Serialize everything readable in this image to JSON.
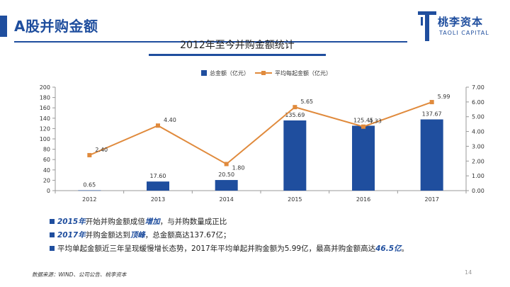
{
  "header": {
    "title": "A股并购金额"
  },
  "logo": {
    "name": "桃李资本",
    "sub": "TAOLI CAPITAL"
  },
  "chart_data": {
    "type": "bar",
    "title": "2012年至今并购金额统计",
    "categories": [
      "2012",
      "2013",
      "2014",
      "2015",
      "2016",
      "2017"
    ],
    "series": [
      {
        "name": "总金额（亿元）",
        "type": "bar",
        "axis": "left",
        "color": "#1f4e9e",
        "values": [
          0.65,
          17.6,
          20.5,
          135.69,
          125.45,
          137.67
        ],
        "labels": [
          "0.65",
          "17.60",
          "20.50",
          "135.69",
          "125.45",
          "137.67"
        ]
      },
      {
        "name": "平均每起金额（亿元）",
        "type": "line",
        "axis": "right",
        "color": "#e08a3c",
        "values": [
          2.4,
          4.4,
          1.8,
          5.65,
          4.33,
          5.99
        ],
        "labels": [
          "2.40",
          "4.40",
          "1.80",
          "5.65",
          "4.33",
          "5.99"
        ]
      }
    ],
    "y_left": {
      "min": 0,
      "max": 200,
      "ticks": [
        "0",
        "20",
        "40",
        "60",
        "80",
        "100",
        "120",
        "140",
        "160",
        "180",
        "200"
      ]
    },
    "y_right": {
      "min": 0,
      "max": 7,
      "ticks": [
        "0.00",
        "1.00",
        "2.00",
        "3.00",
        "4.00",
        "5.00",
        "6.00",
        "7.00"
      ]
    },
    "legend_position": "top",
    "grid": false
  },
  "bullets": [
    {
      "hl1": "2015年",
      "t1": "开始并购金额成倍",
      "hl2": "增加",
      "t2": "，与并购数量成正比"
    },
    {
      "hl1": "2017年",
      "t1": "并购金额达到",
      "hl2": "顶峰",
      "t2": "，总金额高达137.67亿；"
    },
    {
      "hl1": "",
      "t1": "平均单起金额近三年呈现缓慢增长态势，2017年平均单起并购金额为5.99亿，最高并购金额高达",
      "hl2": "46.5亿",
      "t2": "。"
    }
  ],
  "footer": {
    "source": "数据来源：WIND、公司公告、桃李资本",
    "page": "14"
  }
}
